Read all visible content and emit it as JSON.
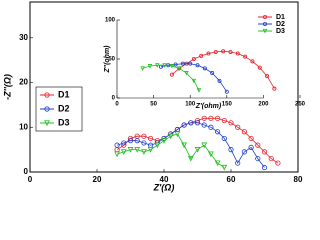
{
  "chart_data": [
    {
      "type": "line",
      "x_label": "Z'(Ω)",
      "y_label": "-Z''(Ω)",
      "xlim": [
        0,
        80
      ],
      "xticks": [
        0,
        20,
        40,
        60,
        80
      ],
      "ylim": [
        0,
        38
      ],
      "yticks": [
        0,
        10,
        20,
        30
      ],
      "legend": "left",
      "series": [
        {
          "name": "D1",
          "color": "#e8202a",
          "marker": "circle",
          "x": [
            26,
            28,
            30,
            32,
            34,
            36,
            38,
            40,
            42,
            44,
            46,
            48,
            50,
            52,
            54,
            56,
            58,
            60,
            62,
            64,
            66,
            68,
            70,
            72,
            74
          ],
          "values": [
            5,
            6,
            7.5,
            8,
            8,
            7.5,
            7,
            7.5,
            8.5,
            9.5,
            10.5,
            11,
            11.5,
            12,
            12,
            12,
            11.5,
            11,
            10,
            9,
            7.5,
            6,
            4.5,
            3,
            2
          ]
        },
        {
          "name": "D2",
          "color": "#2040d0",
          "marker": "circle",
          "x": [
            26,
            28,
            30,
            32,
            34,
            36,
            38,
            40,
            42,
            44,
            46,
            48,
            50,
            52,
            54,
            56,
            58,
            60,
            62,
            64,
            66,
            68,
            70
          ],
          "values": [
            6,
            6.5,
            7,
            7,
            6.5,
            6,
            6.5,
            7.5,
            8.5,
            9.5,
            10.5,
            11,
            11,
            10.5,
            10,
            9,
            7.5,
            5,
            2,
            4.5,
            5.5,
            3,
            1
          ]
        },
        {
          "name": "D3",
          "color": "#20c020",
          "marker": "triangle",
          "x": [
            26,
            28,
            30,
            32,
            34,
            36,
            38,
            40,
            42,
            44,
            46,
            48,
            50,
            52,
            54,
            56,
            58
          ],
          "values": [
            4,
            4.5,
            5,
            5,
            4.5,
            5,
            6,
            7,
            8,
            8.5,
            6,
            3,
            5,
            6,
            4,
            2,
            1
          ]
        }
      ]
    },
    {
      "type": "line",
      "x_label": "Z'(ohm)",
      "y_label": "Z''(ohm)",
      "xlim": [
        0,
        250
      ],
      "xticks": [
        0,
        50,
        100,
        150,
        200,
        250
      ],
      "ylim": [
        0,
        100
      ],
      "yticks": [
        0,
        50,
        100
      ],
      "legend": "right",
      "series": [
        {
          "name": "D1",
          "color": "#e8202a",
          "marker": "circle",
          "x": [
            75,
            85,
            95,
            105,
            115,
            125,
            135,
            145,
            155,
            165,
            175,
            185,
            195,
            205,
            215
          ],
          "values": [
            30,
            38,
            44,
            50,
            54,
            57,
            59,
            60,
            59,
            57,
            53,
            47,
            39,
            28,
            12
          ]
        },
        {
          "name": "D2",
          "color": "#2040d0",
          "marker": "circle",
          "x": [
            60,
            70,
            80,
            90,
            100,
            110,
            120,
            130,
            140,
            150
          ],
          "values": [
            40,
            42,
            43,
            44,
            44,
            42,
            38,
            32,
            22,
            8
          ]
        },
        {
          "name": "D3",
          "color": "#20c020",
          "marker": "triangle",
          "x": [
            35,
            45,
            55,
            65,
            75,
            85,
            95,
            105,
            112
          ],
          "values": [
            38,
            41,
            42,
            42,
            41,
            38,
            32,
            22,
            10
          ]
        }
      ]
    }
  ]
}
